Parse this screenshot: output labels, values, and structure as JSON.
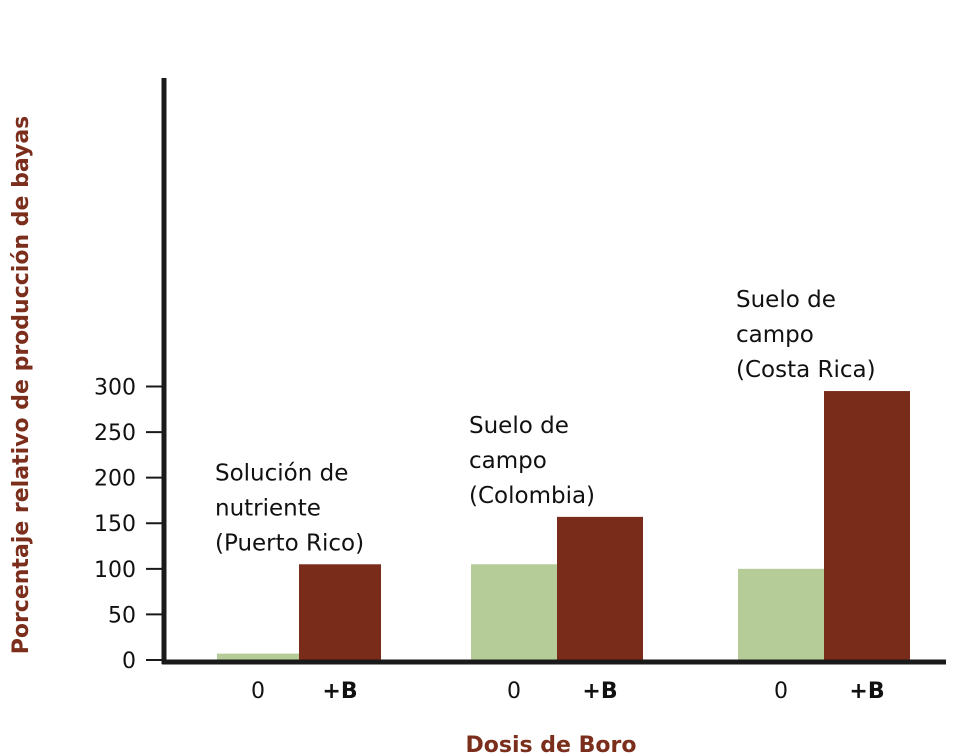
{
  "chart_data": {
    "type": "bar",
    "ylabel": "Porcentaje relativo de producción de bayas",
    "xlabel": "Dosis de Boro",
    "ylim": [
      0,
      320
    ],
    "yticks": [
      0,
      50,
      100,
      150,
      200,
      250,
      300
    ],
    "grid": false,
    "colors": {
      "control": "#b5cc98",
      "boron": "#7a2c1b",
      "axis": "#1a1a1a",
      "axis_title": "#7a2e1b"
    },
    "groups": [
      {
        "label_lines": [
          "Solución de",
          "nutriente",
          "(Puerto Rico)"
        ],
        "bars": [
          {
            "category": "0",
            "value": 7
          },
          {
            "category": "+B",
            "value": 105
          }
        ]
      },
      {
        "label_lines": [
          "Suelo de",
          "campo",
          "(Colombia)"
        ],
        "bars": [
          {
            "category": "0",
            "value": 105
          },
          {
            "category": "+B",
            "value": 157
          }
        ]
      },
      {
        "label_lines": [
          "Suelo de",
          "campo",
          "(Costa Rica)"
        ],
        "bars": [
          {
            "category": "0",
            "value": 100
          },
          {
            "category": "+B",
            "value": 295
          }
        ]
      }
    ]
  }
}
